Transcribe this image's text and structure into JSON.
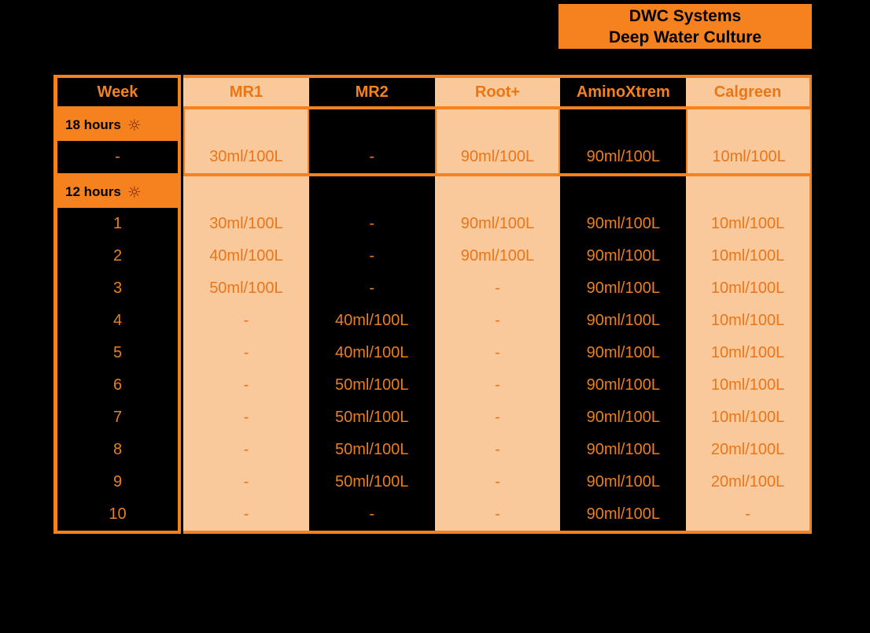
{
  "title": {
    "line1": "DWC Systems",
    "line2": "Deep Water Culture"
  },
  "icons": {
    "sun": "☼"
  },
  "colors": {
    "accent_orange": "#F5821E",
    "peach_cell": "#F9C89B",
    "background": "#000000",
    "value_text_on_black": "#E8801F",
    "value_text_on_peach": "#E8761A",
    "sun_icon": "#7C2A08",
    "title_text": "#000000"
  },
  "chart_data": {
    "type": "table",
    "title": "DWC Systems Deep Water Culture",
    "columns": [
      "Week",
      "MR1",
      "MR2",
      "Root+",
      "AminoXtrem",
      "Calgreen"
    ],
    "sections": [
      {
        "label": "18 hours",
        "icon": "sun",
        "rows": [
          {
            "week": "-",
            "values": [
              "30ml/100L",
              "-",
              "90ml/100L",
              "90ml/100L",
              "10ml/100L"
            ]
          }
        ]
      },
      {
        "label": "12 hours",
        "icon": "sun",
        "rows": [
          {
            "week": "1",
            "values": [
              "30ml/100L",
              "-",
              "90ml/100L",
              "90ml/100L",
              "10ml/100L"
            ]
          },
          {
            "week": "2",
            "values": [
              "40ml/100L",
              "-",
              "90ml/100L",
              "90ml/100L",
              "10ml/100L"
            ]
          },
          {
            "week": "3",
            "values": [
              "50ml/100L",
              "-",
              "-",
              "90ml/100L",
              "10ml/100L"
            ]
          },
          {
            "week": "4",
            "values": [
              "-",
              "40ml/100L",
              "-",
              "90ml/100L",
              "10ml/100L"
            ]
          },
          {
            "week": "5",
            "values": [
              "-",
              "40ml/100L",
              "-",
              "90ml/100L",
              "10ml/100L"
            ]
          },
          {
            "week": "6",
            "values": [
              "-",
              "50ml/100L",
              "-",
              "90ml/100L",
              "10ml/100L"
            ]
          },
          {
            "week": "7",
            "values": [
              "-",
              "50ml/100L",
              "-",
              "90ml/100L",
              "10ml/100L"
            ]
          },
          {
            "week": "8",
            "values": [
              "-",
              "50ml/100L",
              "-",
              "90ml/100L",
              "20ml/100L"
            ]
          },
          {
            "week": "9",
            "values": [
              "-",
              "50ml/100L",
              "-",
              "90ml/100L",
              "20ml/100L"
            ]
          },
          {
            "week": "10",
            "values": [
              "-",
              "-",
              "-",
              "90ml/100L",
              "-"
            ]
          }
        ]
      }
    ]
  }
}
